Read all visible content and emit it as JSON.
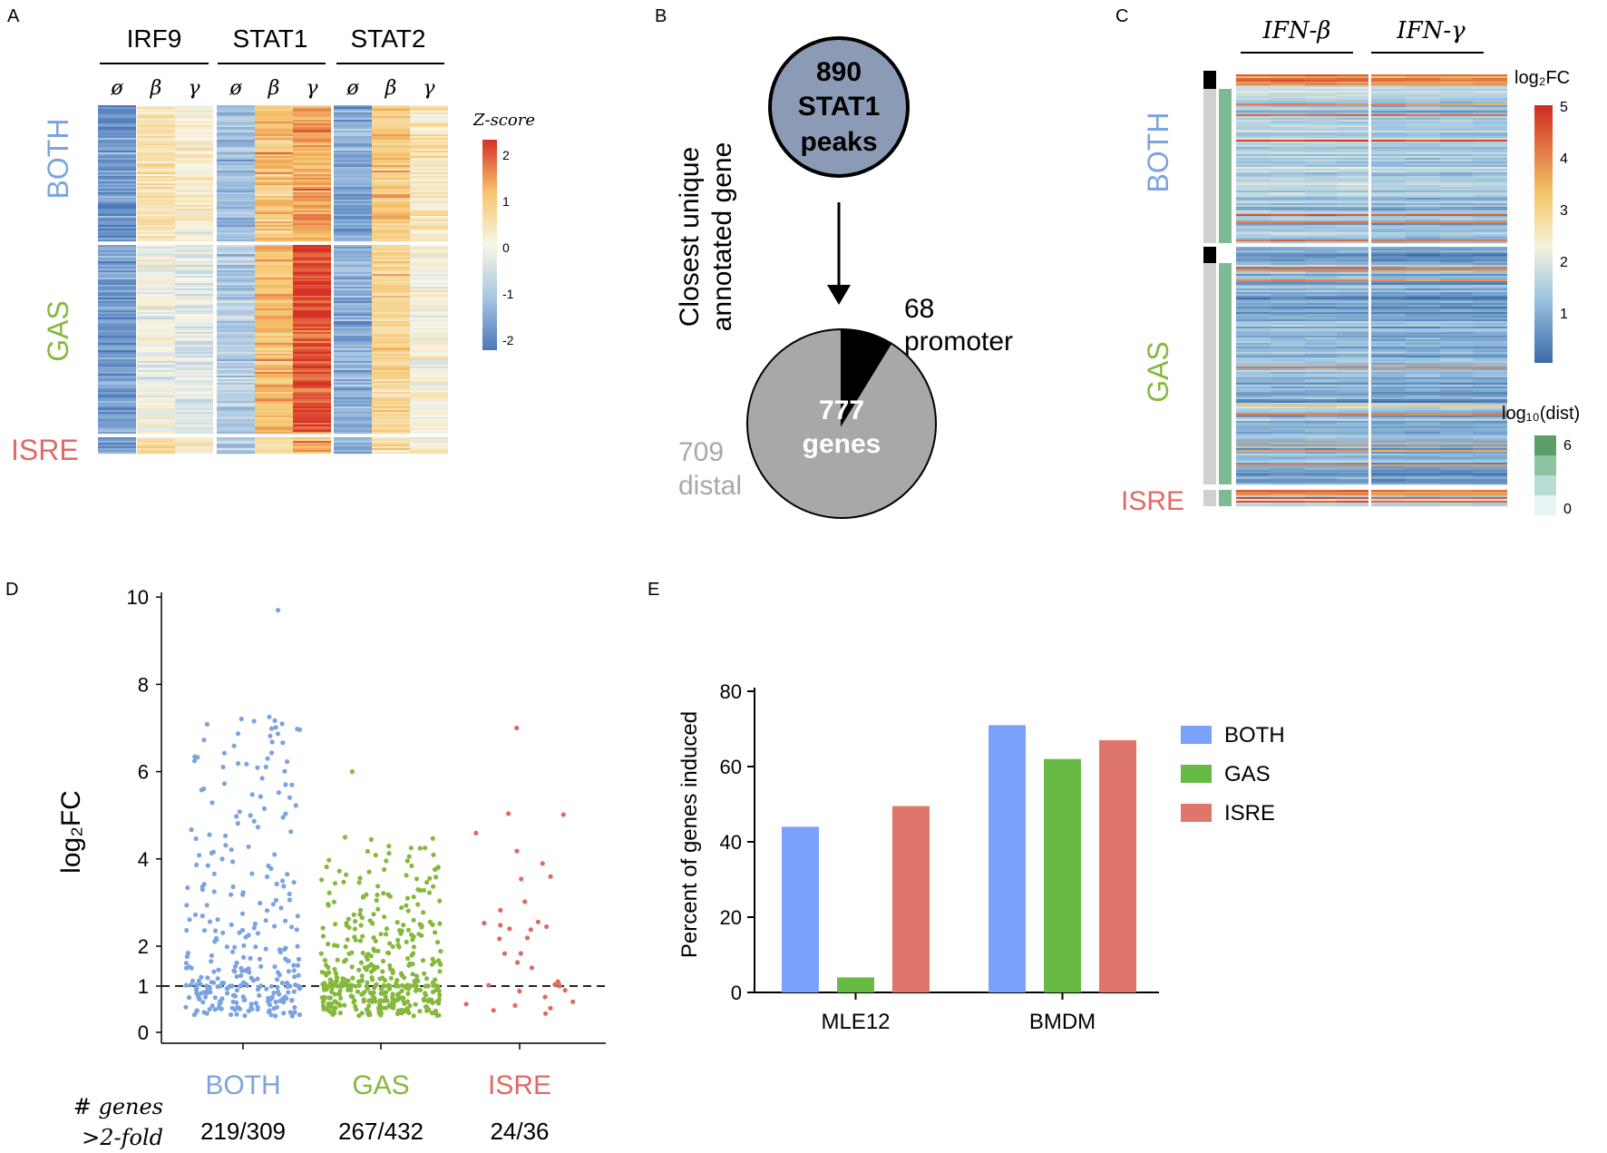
{
  "panel_letters": {
    "a": "A",
    "b": "B",
    "c": "C",
    "d": "D",
    "e": "E"
  },
  "colors": {
    "both": "#7aa3e0",
    "gas": "#86b83d",
    "isre": "#e06a62",
    "bar_both": "#7aa2fb",
    "bar_gas": "#67bb45",
    "bar_isre": "#df766c",
    "node": "#8c9bb5",
    "pie_gray": "#a8a8a8",
    "pie_black": "#000000",
    "green_dark": "#5b9e68",
    "green_light": "#b8ddd6"
  },
  "panelA": {
    "proteins": [
      "IRF9",
      "STAT1",
      "STAT2"
    ],
    "conditions": [
      "ø",
      "β",
      "γ"
    ],
    "groups": [
      {
        "label": "BOTH"
      },
      {
        "label": "GAS"
      },
      {
        "label": "ISRE"
      }
    ],
    "colorbar": {
      "title": "Z-score",
      "ticks": [
        "2",
        "1",
        "0",
        "-1",
        "-2"
      ],
      "range": [
        -2,
        2
      ]
    },
    "mean_zscore": [
      [
        -1.6,
        0.4,
        0.2,
        -1.1,
        0.9,
        1.2,
        -1.4,
        0.8,
        0.3
      ],
      [
        -1.5,
        -0.1,
        -0.3,
        -0.9,
        1.0,
        1.8,
        -1.3,
        0.7,
        0.0
      ],
      [
        -1.4,
        0.6,
        0.2,
        -0.9,
        0.6,
        1.1,
        -1.2,
        0.5,
        0.1
      ]
    ]
  },
  "panelB": {
    "node_lines": [
      "890",
      "STAT1",
      "peaks"
    ],
    "axis_label_lines": [
      "Closest unique",
      "annotated gene"
    ],
    "pie_center_lines": [
      "777",
      "genes"
    ],
    "slices": [
      {
        "label_lines": [
          "68",
          "promoter"
        ],
        "value": 68
      },
      {
        "label_lines": [
          "709",
          "distal"
        ],
        "value": 709
      }
    ]
  },
  "panelC": {
    "columns": [
      "IFN-β",
      "IFN-γ"
    ],
    "groups": [
      {
        "label": "BOTH"
      },
      {
        "label": "GAS"
      },
      {
        "label": "ISRE"
      }
    ],
    "fc_legend": {
      "title": "log₂FC",
      "ticks": [
        "5",
        "4",
        "3",
        "2",
        "1"
      ],
      "range": [
        0.5,
        5
      ]
    },
    "dist_legend": {
      "title": "log₁₀(dist)",
      "ticks": [
        "6",
        "0"
      ]
    }
  },
  "chart_data": [
    {
      "panel": "D",
      "type": "scatter",
      "ylabel": "log₂FC",
      "ylim": [
        0,
        10
      ],
      "yticks": [
        "0",
        "1",
        "2",
        "4",
        "6",
        "8",
        "10"
      ],
      "threshold": 1,
      "categories": [
        "BOTH",
        "GAS",
        "ISRE"
      ],
      "counts_label": [
        "# genes",
        ">2-fold"
      ],
      "counts": [
        "219/309",
        "267/432",
        "24/36"
      ],
      "series_n": [
        309,
        432,
        36
      ],
      "max_values": [
        9.7,
        6.0,
        7.0
      ]
    },
    {
      "panel": "E",
      "type": "bar",
      "ylabel": "Percent of genes induced",
      "ylim": [
        0,
        80
      ],
      "yticks": [
        "0",
        "20",
        "40",
        "60",
        "80"
      ],
      "categories": [
        "MLE12",
        "BMDM"
      ],
      "series": [
        {
          "name": "BOTH",
          "values": [
            44,
            71
          ]
        },
        {
          "name": "GAS",
          "values": [
            4,
            62
          ]
        },
        {
          "name": "ISRE",
          "values": [
            49.5,
            67
          ]
        }
      ]
    }
  ]
}
